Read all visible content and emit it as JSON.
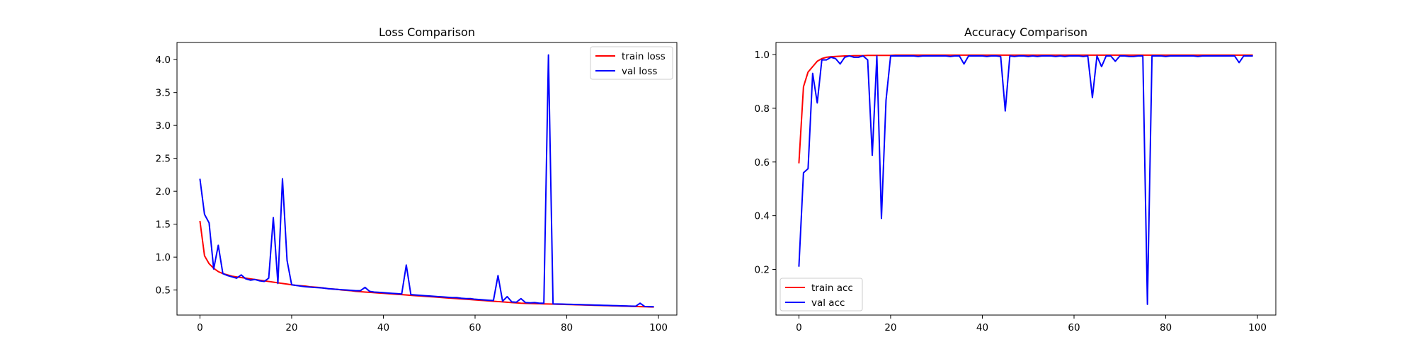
{
  "chart_data": [
    {
      "type": "line",
      "title": "Loss Comparison",
      "xlabel": "",
      "ylabel": "",
      "xlim": [
        -5,
        104
      ],
      "ylim": [
        0.12,
        4.26
      ],
      "xticks": [
        0,
        20,
        40,
        60,
        80,
        100
      ],
      "yticks": [
        0.5,
        1.0,
        1.5,
        2.0,
        2.5,
        3.0,
        3.5,
        4.0
      ],
      "grid": false,
      "legend": "upper right",
      "series": [
        {
          "name": "train loss",
          "color": "#ff0000",
          "values": [
            1.55,
            1.02,
            0.9,
            0.83,
            0.78,
            0.75,
            0.73,
            0.71,
            0.7,
            0.69,
            0.68,
            0.67,
            0.66,
            0.65,
            0.64,
            0.63,
            0.62,
            0.61,
            0.6,
            0.59,
            0.58,
            0.57,
            0.565,
            0.56,
            0.55,
            0.545,
            0.54,
            0.53,
            0.52,
            0.515,
            0.51,
            0.5,
            0.495,
            0.49,
            0.48,
            0.475,
            0.47,
            0.465,
            0.46,
            0.455,
            0.45,
            0.445,
            0.44,
            0.435,
            0.43,
            0.425,
            0.42,
            0.415,
            0.41,
            0.405,
            0.4,
            0.395,
            0.39,
            0.385,
            0.38,
            0.375,
            0.37,
            0.365,
            0.36,
            0.355,
            0.35,
            0.345,
            0.34,
            0.335,
            0.33,
            0.325,
            0.32,
            0.315,
            0.31,
            0.305,
            0.3,
            0.298,
            0.296,
            0.294,
            0.292,
            0.29,
            0.288,
            0.286,
            0.284,
            0.282,
            0.28,
            0.278,
            0.276,
            0.274,
            0.272,
            0.27,
            0.268,
            0.266,
            0.264,
            0.262,
            0.26,
            0.258,
            0.256,
            0.254,
            0.252,
            0.25,
            0.248,
            0.246,
            0.244,
            0.242
          ]
        },
        {
          "name": "val loss",
          "color": "#0000ff",
          "values": [
            2.19,
            1.65,
            1.52,
            0.82,
            1.18,
            0.75,
            0.72,
            0.7,
            0.68,
            0.73,
            0.67,
            0.65,
            0.66,
            0.64,
            0.63,
            0.68,
            1.6,
            0.6,
            2.19,
            0.95,
            0.58,
            0.57,
            0.56,
            0.55,
            0.545,
            0.54,
            0.535,
            0.53,
            0.52,
            0.515,
            0.51,
            0.505,
            0.5,
            0.495,
            0.49,
            0.49,
            0.54,
            0.48,
            0.47,
            0.465,
            0.46,
            0.455,
            0.45,
            0.445,
            0.44,
            0.88,
            0.43,
            0.425,
            0.42,
            0.415,
            0.41,
            0.405,
            0.4,
            0.395,
            0.39,
            0.385,
            0.385,
            0.375,
            0.37,
            0.37,
            0.36,
            0.355,
            0.35,
            0.345,
            0.34,
            0.72,
            0.33,
            0.4,
            0.32,
            0.315,
            0.37,
            0.31,
            0.305,
            0.31,
            0.3,
            0.3,
            4.07,
            0.29,
            0.288,
            0.286,
            0.284,
            0.282,
            0.28,
            0.278,
            0.276,
            0.274,
            0.272,
            0.27,
            0.268,
            0.266,
            0.264,
            0.262,
            0.26,
            0.258,
            0.256,
            0.254,
            0.3,
            0.25,
            0.248,
            0.246
          ]
        }
      ]
    },
    {
      "type": "line",
      "title": "Accuracy Comparison",
      "xlabel": "",
      "ylabel": "",
      "xlim": [
        -5,
        104
      ],
      "ylim": [
        0.03,
        1.045
      ],
      "xticks": [
        0,
        20,
        40,
        60,
        80,
        100
      ],
      "yticks": [
        0.2,
        0.4,
        0.6,
        0.8,
        1.0
      ],
      "grid": false,
      "legend": "lower left",
      "series": [
        {
          "name": "train acc",
          "color": "#ff0000",
          "values": [
            0.595,
            0.88,
            0.935,
            0.955,
            0.975,
            0.985,
            0.99,
            0.992,
            0.993,
            0.994,
            0.995,
            0.995,
            0.996,
            0.996,
            0.996,
            0.997,
            0.997,
            0.997,
            0.997,
            0.997,
            0.997,
            0.998,
            0.998,
            0.998,
            0.998,
            0.998,
            0.998,
            0.998,
            0.998,
            0.998,
            0.998,
            0.998,
            0.998,
            0.998,
            0.998,
            0.998,
            0.998,
            0.998,
            0.998,
            0.998,
            0.998,
            0.998,
            0.998,
            0.998,
            0.998,
            0.998,
            0.998,
            0.998,
            0.998,
            0.998,
            0.998,
            0.998,
            0.998,
            0.998,
            0.998,
            0.998,
            0.998,
            0.998,
            0.998,
            0.998,
            0.998,
            0.998,
            0.998,
            0.998,
            0.998,
            0.998,
            0.998,
            0.998,
            0.998,
            0.998,
            0.998,
            0.998,
            0.998,
            0.998,
            0.998,
            0.998,
            0.998,
            0.998,
            0.998,
            0.998,
            0.998,
            0.998,
            0.998,
            0.998,
            0.998,
            0.998,
            0.998,
            0.998,
            0.998,
            0.998,
            0.998,
            0.998,
            0.998,
            0.998,
            0.998,
            0.998,
            0.998,
            0.998,
            0.998,
            0.998
          ]
        },
        {
          "name": "val acc",
          "color": "#0000ff",
          "values": [
            0.21,
            0.56,
            0.575,
            0.93,
            0.82,
            0.98,
            0.98,
            0.99,
            0.985,
            0.965,
            0.99,
            0.995,
            0.99,
            0.99,
            0.995,
            0.98,
            0.625,
            0.995,
            0.39,
            0.83,
            0.995,
            0.995,
            0.995,
            0.995,
            0.995,
            0.995,
            0.993,
            0.995,
            0.995,
            0.995,
            0.995,
            0.995,
            0.995,
            0.993,
            0.995,
            0.995,
            0.965,
            0.995,
            0.995,
            0.995,
            0.995,
            0.993,
            0.995,
            0.995,
            0.993,
            0.79,
            0.995,
            0.993,
            0.995,
            0.995,
            0.993,
            0.995,
            0.993,
            0.995,
            0.995,
            0.995,
            0.993,
            0.995,
            0.993,
            0.995,
            0.995,
            0.995,
            0.993,
            0.995,
            0.84,
            0.995,
            0.955,
            0.995,
            0.995,
            0.975,
            0.995,
            0.995,
            0.993,
            0.993,
            0.995,
            0.995,
            0.07,
            0.995,
            0.995,
            0.995,
            0.993,
            0.995,
            0.995,
            0.995,
            0.995,
            0.995,
            0.995,
            0.993,
            0.995,
            0.995,
            0.995,
            0.995,
            0.995,
            0.995,
            0.995,
            0.995,
            0.97,
            0.995,
            0.995,
            0.995
          ]
        }
      ]
    }
  ]
}
